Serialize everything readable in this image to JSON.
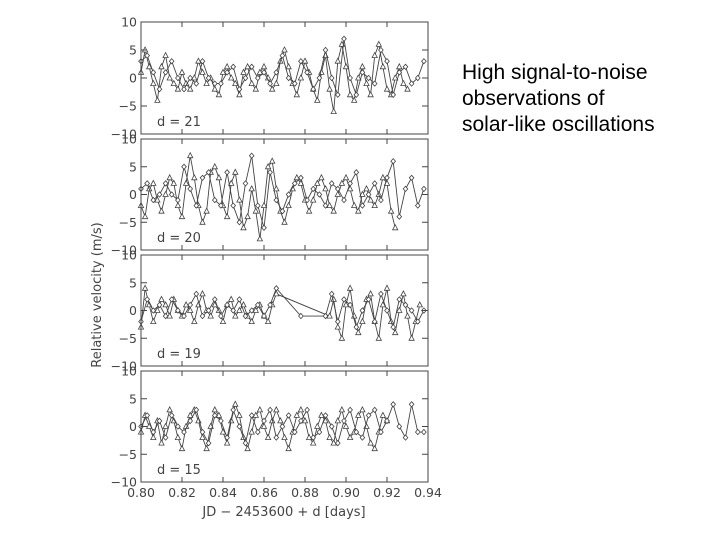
{
  "slide_text": [
    "High signal-to-noise",
    "observations of",
    "solar-like oscillations"
  ],
  "chart_data": [
    {
      "type": "line",
      "panel_label": "d = 21",
      "xlim": [
        0.8,
        0.94
      ],
      "ylim": [
        -10,
        10
      ],
      "yticks": [
        "10",
        "5",
        "0",
        "−5",
        "−10"
      ],
      "series": [
        {
          "marker": "triangle",
          "x": [
            0.8,
            0.802,
            0.804,
            0.806,
            0.808,
            0.81,
            0.812,
            0.814,
            0.816,
            0.818,
            0.82,
            0.822,
            0.824,
            0.826,
            0.828,
            0.83,
            0.832,
            0.834,
            0.836,
            0.838,
            0.84,
            0.842,
            0.844,
            0.846,
            0.848,
            0.85,
            0.852,
            0.854,
            0.856,
            0.858,
            0.86,
            0.862,
            0.864,
            0.866,
            0.868,
            0.87,
            0.872,
            0.874,
            0.876,
            0.878,
            0.88,
            0.882,
            0.884,
            0.886,
            0.888,
            0.89,
            0.892,
            0.894,
            0.896,
            0.898,
            0.9,
            0.902,
            0.904,
            0.906,
            0.908,
            0.91,
            0.912,
            0.914,
            0.916,
            0.918,
            0.92,
            0.922,
            0.924,
            0.926,
            0.928,
            0.93
          ],
          "y": [
            1,
            5,
            2,
            -1,
            -4,
            2,
            4,
            0,
            -1,
            -2,
            1,
            -1,
            -2,
            0,
            3,
            1,
            -1,
            0,
            -2,
            -3,
            1,
            2,
            0,
            -1,
            -3,
            1,
            2,
            -1,
            -2,
            1,
            2,
            0,
            -2,
            -1,
            3,
            5,
            2,
            -1,
            -3,
            0,
            3,
            1,
            -2,
            -4,
            1,
            4,
            -2,
            -6,
            3,
            6,
            2,
            -3,
            -4,
            0,
            2,
            -1,
            -3,
            4,
            6,
            2,
            -2,
            -3,
            0,
            2,
            -1,
            -2
          ]
        },
        {
          "marker": "diamond",
          "x": [
            0.8,
            0.803,
            0.806,
            0.809,
            0.812,
            0.815,
            0.818,
            0.821,
            0.824,
            0.827,
            0.83,
            0.833,
            0.836,
            0.839,
            0.842,
            0.845,
            0.848,
            0.851,
            0.854,
            0.857,
            0.86,
            0.863,
            0.866,
            0.869,
            0.872,
            0.875,
            0.878,
            0.881,
            0.884,
            0.887,
            0.89,
            0.893,
            0.896,
            0.899,
            0.902,
            0.905,
            0.908,
            0.911,
            0.914,
            0.917,
            0.92,
            0.923,
            0.926,
            0.929,
            0.932,
            0.935,
            0.938
          ],
          "y": [
            3,
            4,
            1,
            -2,
            1,
            3,
            0,
            -2,
            0,
            -1,
            3,
            0,
            -1,
            -1,
            1,
            2,
            -2,
            0,
            2,
            0,
            1,
            -1,
            1,
            4,
            0,
            -1,
            3,
            1,
            -2,
            0,
            5,
            0,
            -3,
            7,
            0,
            -3,
            1,
            0,
            -1,
            5,
            3,
            -3,
            1,
            2,
            -1,
            0,
            3
          ]
        }
      ]
    },
    {
      "type": "line",
      "panel_label": "d = 20",
      "xlim": [
        0.8,
        0.94
      ],
      "ylim": [
        -10,
        10
      ],
      "yticks": [
        "10",
        "5",
        "0",
        "−5",
        "−10"
      ],
      "series": [
        {
          "marker": "triangle",
          "x": [
            0.8,
            0.802,
            0.804,
            0.806,
            0.808,
            0.81,
            0.812,
            0.814,
            0.816,
            0.818,
            0.82,
            0.822,
            0.824,
            0.826,
            0.828,
            0.83,
            0.832,
            0.834,
            0.836,
            0.838,
            0.84,
            0.842,
            0.844,
            0.846,
            0.848,
            0.85,
            0.852,
            0.854,
            0.856,
            0.858,
            0.86,
            0.862,
            0.864,
            0.866,
            0.868,
            0.87,
            0.872,
            0.874,
            0.876,
            0.878,
            0.88,
            0.882,
            0.884,
            0.886,
            0.888,
            0.89,
            0.892,
            0.894,
            0.896,
            0.898,
            0.9,
            0.902,
            0.904,
            0.906,
            0.908,
            0.91,
            0.912,
            0.914,
            0.916,
            0.918,
            0.92,
            0.922,
            0.924
          ],
          "y": [
            -2,
            -4,
            1,
            2,
            -1,
            -3,
            0,
            3,
            2,
            -2,
            -4,
            2,
            7,
            3,
            -2,
            -5,
            -3,
            4,
            5,
            3,
            -2,
            -4,
            2,
            4,
            -1,
            -6,
            -4,
            1,
            -3,
            -8,
            -2,
            5,
            6,
            1,
            -3,
            -5,
            -2,
            1,
            3,
            2,
            -1,
            -3,
            -1,
            2,
            3,
            1,
            -2,
            -3,
            0,
            2,
            3,
            1,
            -2,
            -3,
            0,
            1,
            -1,
            -2,
            0,
            3,
            2,
            -3,
            -6
          ]
        },
        {
          "marker": "diamond",
          "x": [
            0.8,
            0.803,
            0.806,
            0.809,
            0.812,
            0.815,
            0.818,
            0.821,
            0.824,
            0.827,
            0.83,
            0.833,
            0.836,
            0.839,
            0.842,
            0.845,
            0.848,
            0.851,
            0.854,
            0.857,
            0.86,
            0.863,
            0.866,
            0.869,
            0.872,
            0.875,
            0.878,
            0.881,
            0.884,
            0.887,
            0.89,
            0.893,
            0.896,
            0.899,
            0.902,
            0.905,
            0.908,
            0.911,
            0.914,
            0.917,
            0.92,
            0.923,
            0.926,
            0.929,
            0.932,
            0.935,
            0.938
          ],
          "y": [
            1,
            2,
            -1,
            0,
            2,
            0,
            -1,
            5,
            1,
            -2,
            3,
            4,
            -1,
            -2,
            4,
            -2,
            -5,
            2,
            7,
            -2,
            -6,
            4,
            -1,
            -3,
            0,
            2,
            3,
            -1,
            1,
            0,
            -2,
            2,
            1,
            -1,
            2,
            4,
            -2,
            0,
            2,
            -1,
            3,
            6,
            -4,
            1,
            3,
            -2,
            1
          ]
        }
      ]
    },
    {
      "type": "line",
      "panel_label": "d = 19",
      "xlim": [
        0.8,
        0.94
      ],
      "ylim": [
        -10,
        10
      ],
      "yticks": [
        "10",
        "5",
        "0",
        "−5",
        "−10"
      ],
      "series": [
        {
          "marker": "triangle",
          "x": [
            0.8,
            0.802,
            0.804,
            0.806,
            0.808,
            0.81,
            0.812,
            0.814,
            0.816,
            0.818,
            0.82,
            0.822,
            0.824,
            0.826,
            0.828,
            0.83,
            0.832,
            0.834,
            0.836,
            0.838,
            0.84,
            0.842,
            0.844,
            0.846,
            0.848,
            0.85,
            0.852,
            0.854,
            0.856,
            0.858,
            0.86,
            0.862,
            0.864,
            0.866,
            0.892,
            0.894,
            0.896,
            0.898,
            0.9,
            0.902,
            0.904,
            0.906,
            0.908,
            0.91,
            0.912,
            0.914,
            0.916,
            0.918,
            0.92,
            0.922,
            0.924,
            0.926,
            0.928,
            0.93,
            0.932,
            0.934,
            0.936
          ],
          "y": [
            -3,
            4,
            1,
            -2,
            0,
            2,
            1,
            -1,
            2,
            0,
            -1,
            1,
            0,
            -2,
            1,
            3,
            0,
            -1,
            1,
            0,
            -2,
            1,
            2,
            -1,
            0,
            1,
            -1,
            -2,
            0,
            1,
            -1,
            -2,
            1,
            3,
            -1,
            2,
            -3,
            -5,
            1,
            4,
            -1,
            -4,
            -2,
            2,
            3,
            -2,
            -5,
            1,
            4,
            -2,
            -4,
            0,
            3,
            -1,
            -5,
            -2,
            1
          ]
        },
        {
          "marker": "diamond",
          "x": [
            0.8,
            0.803,
            0.806,
            0.809,
            0.812,
            0.815,
            0.818,
            0.821,
            0.824,
            0.827,
            0.83,
            0.833,
            0.836,
            0.839,
            0.842,
            0.845,
            0.848,
            0.851,
            0.854,
            0.857,
            0.86,
            0.863,
            0.866,
            0.878,
            0.89,
            0.893,
            0.896,
            0.899,
            0.902,
            0.905,
            0.908,
            0.911,
            0.914,
            0.917,
            0.92,
            0.923,
            0.926,
            0.929,
            0.932,
            0.935,
            0.938
          ],
          "y": [
            -2,
            2,
            0,
            1,
            -1,
            2,
            0,
            -1,
            1,
            3,
            -1,
            0,
            2,
            -1,
            1,
            0,
            2,
            -1,
            0,
            1,
            -1,
            1,
            4,
            -1,
            -1,
            3,
            -2,
            2,
            1,
            -3,
            0,
            2,
            -2,
            3,
            0,
            -3,
            2,
            1,
            0,
            -2,
            0
          ]
        }
      ]
    },
    {
      "type": "line",
      "panel_label": "d = 15",
      "xlim": [
        0.8,
        0.94
      ],
      "ylim": [
        -10,
        10
      ],
      "yticks": [
        "10",
        "5",
        "0",
        "−5",
        "−10"
      ],
      "series": [
        {
          "marker": "triangle",
          "x": [
            0.8,
            0.802,
            0.804,
            0.806,
            0.808,
            0.81,
            0.812,
            0.814,
            0.816,
            0.818,
            0.82,
            0.822,
            0.824,
            0.826,
            0.828,
            0.83,
            0.832,
            0.834,
            0.836,
            0.838,
            0.84,
            0.842,
            0.844,
            0.846,
            0.848,
            0.85,
            0.852,
            0.854,
            0.856,
            0.858,
            0.86,
            0.862,
            0.864,
            0.866,
            0.868,
            0.87,
            0.872,
            0.874,
            0.876,
            0.878,
            0.88,
            0.882,
            0.884,
            0.886,
            0.888,
            0.89,
            0.892,
            0.894,
            0.896,
            0.898,
            0.9,
            0.902,
            0.904,
            0.906,
            0.908,
            0.91,
            0.912,
            0.914,
            0.916,
            0.918,
            0.92
          ],
          "y": [
            -1,
            2,
            0,
            -2,
            1,
            -3,
            0,
            3,
            1,
            -2,
            -4,
            0,
            2,
            3,
            1,
            -2,
            -4,
            0,
            3,
            2,
            -1,
            -3,
            1,
            4,
            2,
            -2,
            -4,
            -1,
            2,
            3,
            0,
            -2,
            1,
            3,
            1,
            -2,
            -4,
            -1,
            2,
            3,
            1,
            -2,
            -3,
            0,
            2,
            1,
            -2,
            -3,
            1,
            3,
            0,
            -2,
            -1,
            2,
            3,
            0,
            -3,
            -4,
            -1,
            2,
            1
          ]
        },
        {
          "marker": "diamond",
          "x": [
            0.8,
            0.803,
            0.806,
            0.809,
            0.812,
            0.815,
            0.818,
            0.821,
            0.824,
            0.827,
            0.83,
            0.833,
            0.836,
            0.839,
            0.842,
            0.845,
            0.848,
            0.851,
            0.854,
            0.857,
            0.86,
            0.863,
            0.866,
            0.869,
            0.872,
            0.875,
            0.878,
            0.881,
            0.884,
            0.887,
            0.89,
            0.893,
            0.896,
            0.899,
            0.902,
            0.905,
            0.908,
            0.911,
            0.914,
            0.917,
            0.92,
            0.923,
            0.926,
            0.929,
            0.932,
            0.935,
            0.938
          ],
          "y": [
            0,
            2,
            -1,
            1,
            -2,
            2,
            0,
            -1,
            1,
            3,
            -1,
            -3,
            2,
            1,
            -2,
            3,
            0,
            -3,
            2,
            -1,
            1,
            3,
            -2,
            0,
            2,
            -1,
            1,
            3,
            -2,
            -1,
            2,
            0,
            -3,
            1,
            3,
            -1,
            -2,
            2,
            3,
            -1,
            1,
            4,
            0,
            -2,
            4,
            -1,
            -1
          ]
        }
      ]
    }
  ],
  "x_axis": {
    "label": "JD − 2453600 + d [days]",
    "ticks": [
      "0.80",
      "0.82",
      "0.84",
      "0.86",
      "0.88",
      "0.90",
      "0.92",
      "0.94"
    ]
  },
  "y_axis": {
    "label": "Relative velocity (m/s)"
  },
  "colors": {
    "line": "#444444",
    "frame": "#444444",
    "marker_fill": "#ffffff"
  }
}
